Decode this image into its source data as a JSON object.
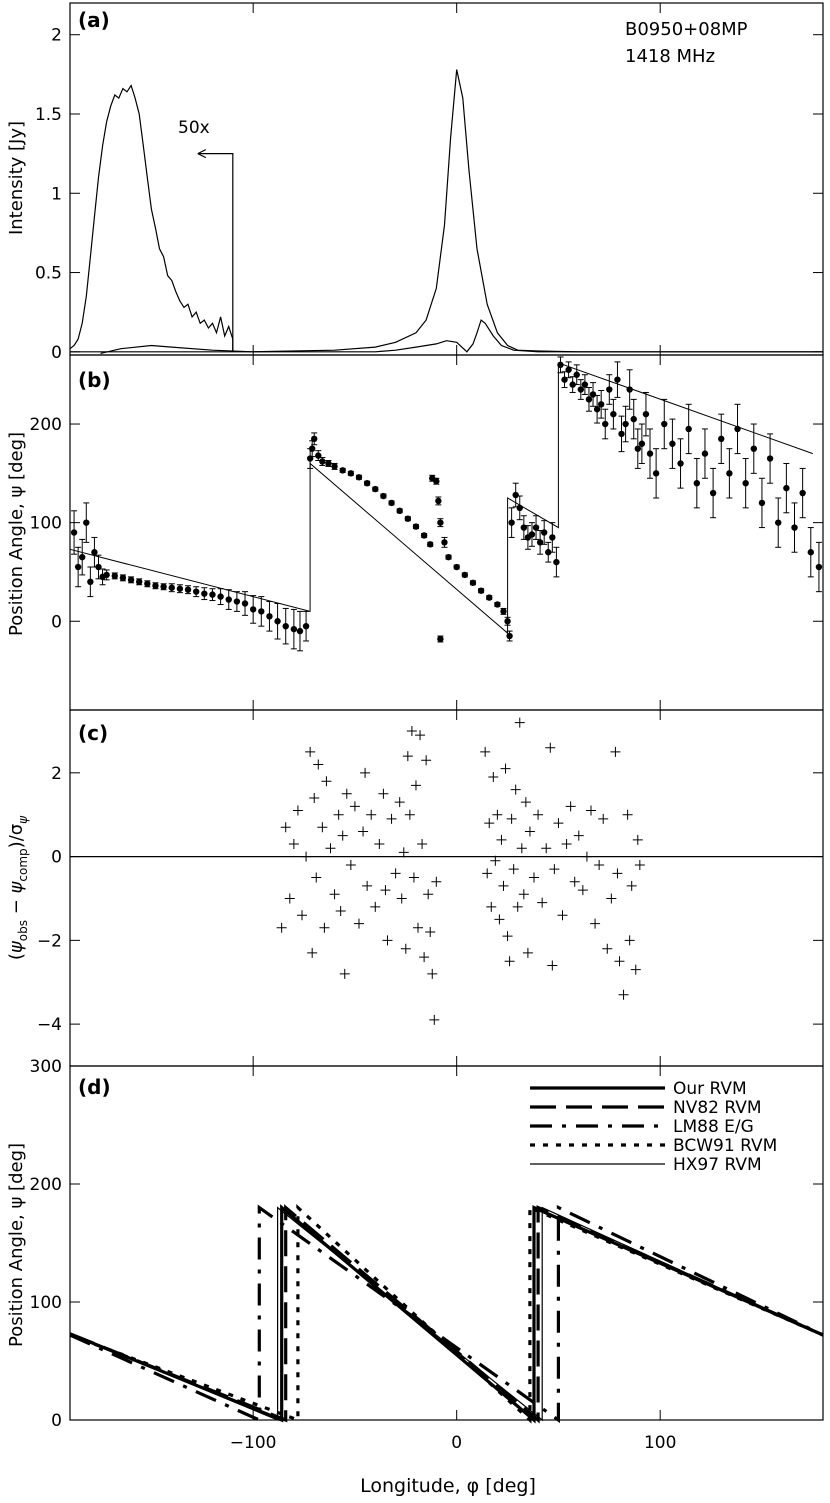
{
  "source": "B0950+08MP",
  "frequency": "1418 MHz",
  "xlabel": "Longitude, φ [deg]",
  "xlim": [
    -190,
    180
  ],
  "xticks": [
    -100,
    0,
    100
  ],
  "chart_data": [
    {
      "panel": "(a)",
      "type": "line",
      "ylabel": "Intensity [Jy]",
      "ylim": [
        -0.02,
        2.2
      ],
      "yticks": [
        0,
        0.5,
        1,
        1.5,
        2
      ],
      "annotation": "50x",
      "annotation_point": [
        -110,
        1.25
      ],
      "series": [
        {
          "x": [
            -190,
            -188,
            -186,
            -184,
            -182,
            -180,
            -178,
            -176,
            -174,
            -172,
            -170,
            -168,
            -166,
            -164,
            -162,
            -160,
            -158,
            -156,
            -154,
            -152,
            -150,
            -148,
            -146,
            -144,
            -142,
            -140,
            -138,
            -136,
            -134,
            -132,
            -130,
            -128,
            -126,
            -124,
            -122,
            -120,
            -118,
            -116,
            -114,
            -112,
            -110,
            -110
          ],
          "y": [
            0.02,
            0.04,
            0.08,
            0.18,
            0.35,
            0.6,
            0.85,
            1.1,
            1.3,
            1.45,
            1.55,
            1.62,
            1.6,
            1.66,
            1.64,
            1.68,
            1.6,
            1.5,
            1.3,
            1.1,
            0.9,
            0.78,
            0.65,
            0.6,
            0.48,
            0.45,
            0.38,
            0.32,
            0.28,
            0.3,
            0.22,
            0.25,
            0.18,
            0.2,
            0.15,
            0.18,
            0.12,
            0.22,
            0.1,
            0.16,
            0.08,
            0.0
          ]
        },
        {
          "x": [
            -190,
            -160,
            -140,
            -110,
            -100,
            -80,
            -60,
            -40,
            -30,
            -20,
            -15,
            -10,
            -6,
            -3,
            0,
            3,
            6,
            10,
            15,
            20,
            25,
            30,
            40,
            60,
            100,
            180
          ],
          "y": [
            0.0,
            0.0,
            0.0,
            0.0,
            0.0,
            0.005,
            0.01,
            0.03,
            0.06,
            0.12,
            0.2,
            0.4,
            0.8,
            1.35,
            1.78,
            1.6,
            1.15,
            0.65,
            0.3,
            0.12,
            0.04,
            0.01,
            0.005,
            0.0,
            0.0,
            0.0
          ]
        },
        {
          "x": [
            -175,
            -165,
            -150,
            -140,
            -120,
            -100,
            -80,
            -60,
            -40,
            -30,
            -20,
            -10,
            -5,
            0,
            5,
            8,
            10,
            12,
            14,
            18,
            22,
            28,
            40,
            60,
            100,
            180
          ],
          "y": [
            -0.01,
            0.02,
            0.04,
            0.03,
            0.01,
            0.0,
            0.0,
            0.0,
            0.0,
            0.01,
            0.03,
            0.05,
            0.07,
            0.06,
            0.0,
            0.05,
            0.12,
            0.2,
            0.18,
            0.1,
            0.04,
            0.01,
            0.0,
            0.0,
            0.0,
            0.0
          ]
        }
      ]
    },
    {
      "panel": "(b)",
      "type": "scatter",
      "ylabel": "Position Angle, ψ [deg]",
      "ylim": [
        -90,
        270
      ],
      "yticks": [
        0,
        100,
        200
      ],
      "points": [
        [
          -188,
          90,
          22
        ],
        [
          -186,
          55,
          20
        ],
        [
          -184,
          65,
          18
        ],
        [
          -182,
          100,
          20
        ],
        [
          -180,
          40,
          15
        ],
        [
          -178,
          70,
          15
        ],
        [
          -176,
          55,
          12
        ],
        [
          -174,
          45,
          8
        ],
        [
          -172,
          47,
          5
        ],
        [
          -168,
          46,
          3
        ],
        [
          -164,
          44,
          3
        ],
        [
          -160,
          42,
          3
        ],
        [
          -156,
          40,
          3
        ],
        [
          -152,
          38,
          3
        ],
        [
          -148,
          36,
          3
        ],
        [
          -144,
          35,
          3
        ],
        [
          -140,
          34,
          4
        ],
        [
          -136,
          33,
          4
        ],
        [
          -132,
          32,
          4
        ],
        [
          -128,
          30,
          5
        ],
        [
          -124,
          28,
          6
        ],
        [
          -120,
          27,
          6
        ],
        [
          -116,
          25,
          8
        ],
        [
          -112,
          22,
          10
        ],
        [
          -108,
          20,
          10
        ],
        [
          -104,
          18,
          12
        ],
        [
          -100,
          12,
          14
        ],
        [
          -96,
          10,
          15
        ],
        [
          -92,
          5,
          15
        ],
        [
          -88,
          0,
          18
        ],
        [
          -84,
          -5,
          18
        ],
        [
          -80,
          -8,
          20
        ],
        [
          -77,
          -10,
          20
        ],
        [
          -74,
          -5,
          15
        ],
        [
          -72,
          165,
          10
        ],
        [
          -71,
          175,
          8
        ],
        [
          -70,
          185,
          6
        ],
        [
          -68,
          168,
          5
        ],
        [
          -66,
          162,
          4
        ],
        [
          -63,
          160,
          3
        ],
        [
          -60,
          157,
          3
        ],
        [
          -56,
          153,
          2
        ],
        [
          -52,
          150,
          2
        ],
        [
          -48,
          146,
          2
        ],
        [
          -44,
          140,
          2
        ],
        [
          -40,
          134,
          2
        ],
        [
          -36,
          127,
          2
        ],
        [
          -32,
          120,
          2
        ],
        [
          -28,
          112,
          2
        ],
        [
          -24,
          104,
          2
        ],
        [
          -20,
          96,
          2
        ],
        [
          -16,
          87,
          2
        ],
        [
          -13,
          78,
          2
        ],
        [
          -12,
          145,
          3
        ],
        [
          -10,
          142,
          3
        ],
        [
          -9,
          122,
          4
        ],
        [
          -8,
          100,
          4
        ],
        [
          -6,
          80,
          5
        ],
        [
          -8,
          -18,
          3
        ],
        [
          -4,
          65,
          2
        ],
        [
          0,
          55,
          2
        ],
        [
          4,
          47,
          2
        ],
        [
          8,
          39,
          2
        ],
        [
          12,
          31,
          2
        ],
        [
          16,
          24,
          2
        ],
        [
          20,
          17,
          2
        ],
        [
          23,
          10,
          3
        ],
        [
          25,
          0,
          4
        ],
        [
          26,
          -15,
          5
        ],
        [
          27,
          100,
          15
        ],
        [
          29,
          128,
          12
        ],
        [
          31,
          115,
          12
        ],
        [
          33,
          95,
          12
        ],
        [
          35,
          85,
          12
        ],
        [
          37,
          88,
          12
        ],
        [
          39,
          95,
          12
        ],
        [
          41,
          80,
          12
        ],
        [
          43,
          90,
          12
        ],
        [
          45,
          70,
          10
        ],
        [
          47,
          85,
          15
        ],
        [
          49,
          60,
          15
        ],
        [
          51,
          260,
          8
        ],
        [
          53,
          245,
          8
        ],
        [
          55,
          255,
          8
        ],
        [
          57,
          240,
          8
        ],
        [
          59,
          250,
          10
        ],
        [
          61,
          235,
          10
        ],
        [
          63,
          240,
          10
        ],
        [
          65,
          225,
          12
        ],
        [
          67,
          230,
          12
        ],
        [
          69,
          215,
          14
        ],
        [
          71,
          220,
          14
        ],
        [
          73,
          200,
          15
        ],
        [
          75,
          235,
          15
        ],
        [
          77,
          210,
          15
        ],
        [
          79,
          245,
          18
        ],
        [
          81,
          190,
          18
        ],
        [
          83,
          200,
          18
        ],
        [
          85,
          235,
          20
        ],
        [
          87,
          205,
          20
        ],
        [
          89,
          175,
          20
        ],
        [
          91,
          180,
          20
        ],
        [
          93,
          210,
          22
        ],
        [
          95,
          170,
          25
        ],
        [
          98,
          150,
          25
        ],
        [
          102,
          200,
          25
        ],
        [
          106,
          180,
          25
        ],
        [
          110,
          160,
          25
        ],
        [
          114,
          195,
          25
        ],
        [
          118,
          140,
          25
        ],
        [
          122,
          170,
          25
        ],
        [
          126,
          130,
          25
        ],
        [
          130,
          185,
          25
        ],
        [
          134,
          150,
          25
        ],
        [
          138,
          195,
          25
        ],
        [
          142,
          140,
          25
        ],
        [
          146,
          175,
          25
        ],
        [
          150,
          120,
          25
        ],
        [
          154,
          165,
          25
        ],
        [
          158,
          100,
          25
        ],
        [
          162,
          135,
          25
        ],
        [
          166,
          95,
          25
        ],
        [
          170,
          130,
          25
        ],
        [
          174,
          70,
          25
        ],
        [
          178,
          55,
          25
        ]
      ],
      "rvm_curve": {
        "x": [
          -190,
          -72,
          -72,
          25,
          25,
          50,
          50,
          175
        ],
        "y": [
          73,
          10,
          160,
          -12,
          125,
          95,
          262,
          170
        ]
      }
    },
    {
      "panel": "(c)",
      "type": "scatter",
      "ylabel": "(ψ_obs − ψ_comp)/σ_ψ",
      "ylim": [
        -5,
        3.5
      ],
      "yticks": [
        -4,
        -2,
        0,
        2
      ],
      "reference_line": 0,
      "points": [
        [
          -86,
          -1.7
        ],
        [
          -84,
          0.7
        ],
        [
          -82,
          -1.0
        ],
        [
          -80,
          0.3
        ],
        [
          -78,
          1.1
        ],
        [
          -76,
          -1.4
        ],
        [
          -74,
          0.0
        ],
        [
          -72,
          2.5
        ],
        [
          -71,
          -2.3
        ],
        [
          -70,
          1.4
        ],
        [
          -69,
          -0.5
        ],
        [
          -68,
          2.2
        ],
        [
          -66,
          0.7
        ],
        [
          -65,
          -1.7
        ],
        [
          -64,
          1.8
        ],
        [
          -62,
          0.2
        ],
        [
          -60,
          -0.9
        ],
        [
          -58,
          1.0
        ],
        [
          -57,
          -1.3
        ],
        [
          -56,
          0.5
        ],
        [
          -55,
          -2.8
        ],
        [
          -54,
          1.5
        ],
        [
          -52,
          -0.2
        ],
        [
          -50,
          1.2
        ],
        [
          -48,
          -1.6
        ],
        [
          -46,
          0.6
        ],
        [
          -45,
          2.0
        ],
        [
          -44,
          -0.7
        ],
        [
          -42,
          1.0
        ],
        [
          -40,
          -1.2
        ],
        [
          -38,
          0.3
        ],
        [
          -36,
          1.5
        ],
        [
          -35,
          -0.8
        ],
        [
          -34,
          -2.0
        ],
        [
          -32,
          0.9
        ],
        [
          -30,
          -0.4
        ],
        [
          -28,
          1.3
        ],
        [
          -27,
          -1.0
        ],
        [
          -26,
          0.1
        ],
        [
          -25,
          -2.2
        ],
        [
          -24,
          2.4
        ],
        [
          -23,
          1.0
        ],
        [
          -22,
          3.0
        ],
        [
          -21,
          -0.5
        ],
        [
          -20,
          1.7
        ],
        [
          -19,
          -1.7
        ],
        [
          -18,
          2.9
        ],
        [
          -17,
          0.3
        ],
        [
          -16,
          -2.4
        ],
        [
          -15,
          2.3
        ],
        [
          -14,
          -0.9
        ],
        [
          -13,
          -1.8
        ],
        [
          -12,
          -2.8
        ],
        [
          -11,
          -3.9
        ],
        [
          -10,
          -0.6
        ],
        [
          14,
          2.5
        ],
        [
          15,
          -0.4
        ],
        [
          16,
          0.8
        ],
        [
          17,
          -1.2
        ],
        [
          18,
          1.9
        ],
        [
          19,
          -0.1
        ],
        [
          20,
          1.0
        ],
        [
          21,
          -1.5
        ],
        [
          22,
          0.4
        ],
        [
          23,
          -0.7
        ],
        [
          24,
          2.1
        ],
        [
          25,
          -1.9
        ],
        [
          26,
          -2.5
        ],
        [
          27,
          0.9
        ],
        [
          28,
          -0.3
        ],
        [
          29,
          1.6
        ],
        [
          30,
          -1.2
        ],
        [
          31,
          3.2
        ],
        [
          32,
          0.2
        ],
        [
          33,
          -0.9
        ],
        [
          34,
          1.3
        ],
        [
          35,
          -2.3
        ],
        [
          36,
          0.6
        ],
        [
          38,
          -0.5
        ],
        [
          40,
          1.0
        ],
        [
          42,
          -1.1
        ],
        [
          44,
          0.2
        ],
        [
          46,
          2.6
        ],
        [
          47,
          -2.6
        ],
        [
          48,
          -0.3
        ],
        [
          50,
          0.8
        ],
        [
          52,
          -1.4
        ],
        [
          54,
          0.3
        ],
        [
          56,
          1.2
        ],
        [
          58,
          -0.6
        ],
        [
          60,
          0.5
        ],
        [
          62,
          -0.8
        ],
        [
          64,
          0.0
        ],
        [
          66,
          1.1
        ],
        [
          68,
          -1.6
        ],
        [
          70,
          -0.2
        ],
        [
          72,
          0.9
        ],
        [
          74,
          -2.2
        ],
        [
          76,
          -1.0
        ],
        [
          78,
          2.5
        ],
        [
          79,
          -0.4
        ],
        [
          80,
          -2.5
        ],
        [
          82,
          -3.3
        ],
        [
          84,
          1.0
        ],
        [
          85,
          -2.0
        ],
        [
          86,
          -0.7
        ],
        [
          88,
          -2.7
        ],
        [
          89,
          0.4
        ],
        [
          90,
          -0.2
        ]
      ]
    },
    {
      "panel": "(d)",
      "type": "line",
      "ylabel": "Position Angle, ψ [deg]",
      "ylim": [
        0,
        300
      ],
      "yticks": [
        0,
        100,
        200,
        300
      ],
      "series": [
        {
          "name": "Our RVM",
          "x": [
            -190,
            -86,
            -86,
            38,
            38,
            180
          ],
          "y": [
            73,
            0,
            180,
            0,
            180,
            72
          ]
        },
        {
          "name": "NV82 RVM",
          "x": [
            -190,
            -84,
            -84,
            40,
            40,
            180
          ],
          "y": [
            73,
            0,
            180,
            0,
            180,
            72
          ]
        },
        {
          "name": "LM88 E/G",
          "x": [
            -190,
            -97,
            -97,
            50,
            50,
            180
          ],
          "y": [
            72,
            0,
            180,
            0,
            180,
            72
          ]
        },
        {
          "name": "BCW91 RVM",
          "x": [
            -190,
            -78,
            -78,
            36,
            36,
            180
          ],
          "y": [
            72,
            0,
            180,
            0,
            180,
            72
          ]
        },
        {
          "name": "HX97 RVM",
          "x": [
            -190,
            -88,
            -88,
            42,
            42,
            180
          ],
          "y": [
            73,
            0,
            180,
            0,
            180,
            72
          ]
        }
      ]
    }
  ]
}
